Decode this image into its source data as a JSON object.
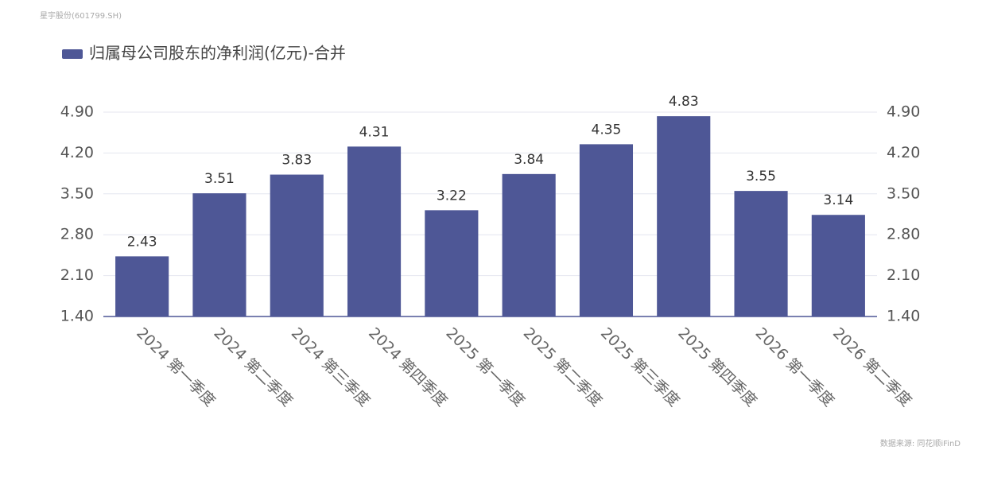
{
  "source_title": "星宇股份(601799.SH)",
  "footnote": "数据来源: 同花顺iFinD",
  "chart_data": {
    "type": "bar",
    "categories": [
      "2024 第一季度",
      "2024 第二季度",
      "2024 第三季度",
      "2024 第四季度",
      "2025 第一季度",
      "2025 第二季度",
      "2025 第三季度",
      "2025 第四季度",
      "2026 第一季度",
      "2026 第二季度"
    ],
    "series": [
      {
        "name": "归属母公司股东的净利润(亿元)-合并",
        "color": "#4e5796",
        "values": [
          2.43,
          3.51,
          3.83,
          4.31,
          3.22,
          3.84,
          4.35,
          4.83,
          3.55,
          3.14
        ]
      }
    ],
    "ylim": [
      1.4,
      4.9
    ],
    "yticks": [
      {
        "value": 1.4,
        "label": "1.40"
      },
      {
        "value": 2.1,
        "label": "2.10"
      },
      {
        "value": 2.8,
        "label": "2.80"
      },
      {
        "value": 3.5,
        "label": "3.50"
      },
      {
        "value": 4.2,
        "label": "4.20"
      },
      {
        "value": 4.9,
        "label": "4.90"
      }
    ],
    "y2lim": [
      1.4,
      4.9
    ],
    "y2ticks": [
      {
        "value": 1.4,
        "label": "1.40"
      },
      {
        "value": 2.1,
        "label": "2.10"
      },
      {
        "value": 2.8,
        "label": "2.80"
      },
      {
        "value": 3.5,
        "label": "3.50"
      },
      {
        "value": 4.2,
        "label": "4.20"
      },
      {
        "value": 4.9,
        "label": "4.90"
      }
    ],
    "grid": true,
    "legend": "top-left"
  }
}
